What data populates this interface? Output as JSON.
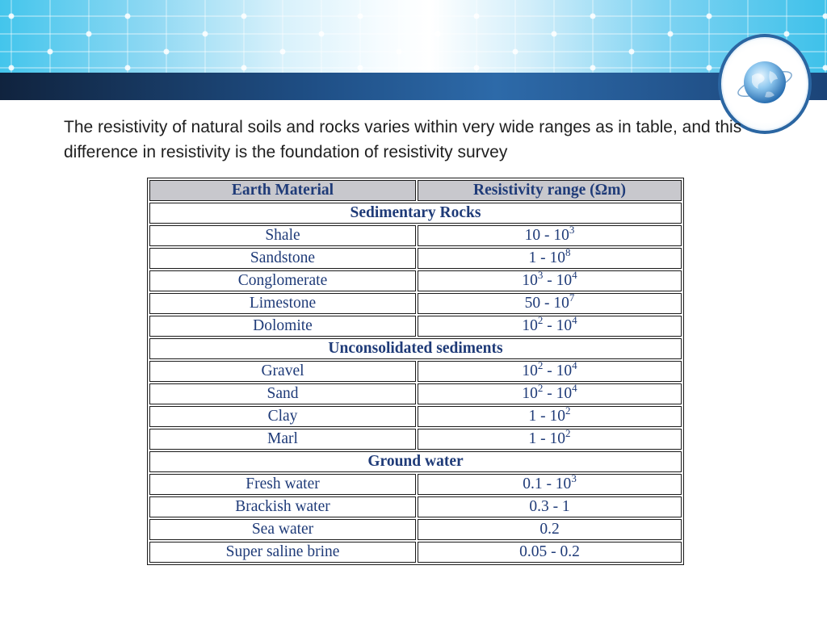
{
  "slide": {
    "intro_text": "The resistivity of natural soils and rocks varies within very wide ranges as in table, and this difference in resistivity is the foundation of resistivity survey"
  },
  "table": {
    "headers": [
      "Earth Material",
      "Resistivity range (Ωm)"
    ],
    "sections": [
      {
        "title": "Sedimentary Rocks",
        "rows": [
          {
            "material": "Shale",
            "range": [
              [
                "10 - 10"
              ],
              [
                "3"
              ]
            ]
          },
          {
            "material": "Sandstone",
            "range": [
              [
                "1 - 10"
              ],
              [
                "8"
              ]
            ]
          },
          {
            "material": "Conglomerate",
            "range": [
              [
                "10",
                "3",
                " - 10",
                "4"
              ]
            ]
          },
          {
            "material": "Limestone",
            "range": [
              [
                "50 - 10",
                "7"
              ]
            ]
          },
          {
            "material": "Dolomite",
            "range": [
              [
                "10",
                "2",
                " - 10",
                "4"
              ]
            ]
          }
        ]
      },
      {
        "title": "Unconsolidated sediments",
        "rows": [
          {
            "material": "Gravel",
            "range": [
              [
                "10",
                "2",
                " - 10",
                "4"
              ]
            ]
          },
          {
            "material": "Sand",
            "range": [
              [
                "10",
                "2",
                " - 10",
                "4"
              ]
            ]
          },
          {
            "material": "Clay",
            "range": [
              [
                "1 - 10",
                "2"
              ]
            ]
          },
          {
            "material": "Marl",
            "range": [
              [
                "1 - 10",
                "2"
              ]
            ]
          }
        ]
      },
      {
        "title": "Ground water",
        "rows": [
          {
            "material": "Fresh water",
            "range": [
              [
                "0.1 - 10",
                "3"
              ]
            ]
          },
          {
            "material": "Brackish water",
            "range": [
              [
                "0.3 - 1"
              ]
            ]
          },
          {
            "material": "Sea water",
            "range": [
              [
                "0.2"
              ]
            ]
          },
          {
            "material": "Super saline brine",
            "range": [
              [
                "0.05 - 0.2"
              ]
            ]
          }
        ]
      }
    ]
  },
  "colors": {
    "table_text": "#1f3b78",
    "header_fill": "#c8c8cd",
    "banner_bar": "#1f4f86"
  },
  "icons": {
    "logo": "globe-icon"
  }
}
